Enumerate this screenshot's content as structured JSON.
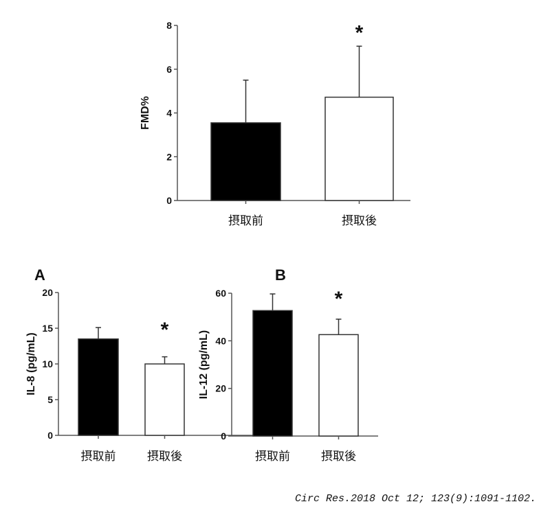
{
  "chart_data": [
    {
      "type": "bar",
      "ylabel": "FMD%",
      "categories": [
        "摂取前",
        "摂取後"
      ],
      "values": [
        3.55,
        4.72
      ],
      "errors": [
        1.95,
        2.33
      ],
      "significance": [
        "",
        "*"
      ],
      "colors": [
        "#000000",
        "#ffffff"
      ],
      "ylim": [
        0,
        8
      ],
      "yticks": [
        0,
        2,
        4,
        6,
        8
      ],
      "grid": false
    },
    {
      "type": "bar",
      "panel_label": "A",
      "ylabel": "IL-8 (pg/mL)",
      "categories": [
        "摂取前",
        "摂取後"
      ],
      "values": [
        13.5,
        10.0
      ],
      "errors": [
        1.6,
        1.0
      ],
      "significance": [
        "",
        "*"
      ],
      "colors": [
        "#000000",
        "#ffffff"
      ],
      "ylim": [
        0,
        20
      ],
      "yticks": [
        0,
        5,
        10,
        15,
        20
      ],
      "grid": false
    },
    {
      "type": "bar",
      "panel_label": "B",
      "ylabel": "IL-12 (pg/mL)",
      "categories": [
        "摂取前",
        "摂取後"
      ],
      "values": [
        52.7,
        42.6
      ],
      "errors": [
        7.0,
        6.5
      ],
      "significance": [
        "",
        "*"
      ],
      "colors": [
        "#000000",
        "#ffffff"
      ],
      "ylim": [
        0,
        60
      ],
      "yticks": [
        0,
        20,
        40,
        60
      ],
      "grid": false
    }
  ],
  "citation": "Circ Res.2018 Oct 12; 123(9):1091-1102."
}
